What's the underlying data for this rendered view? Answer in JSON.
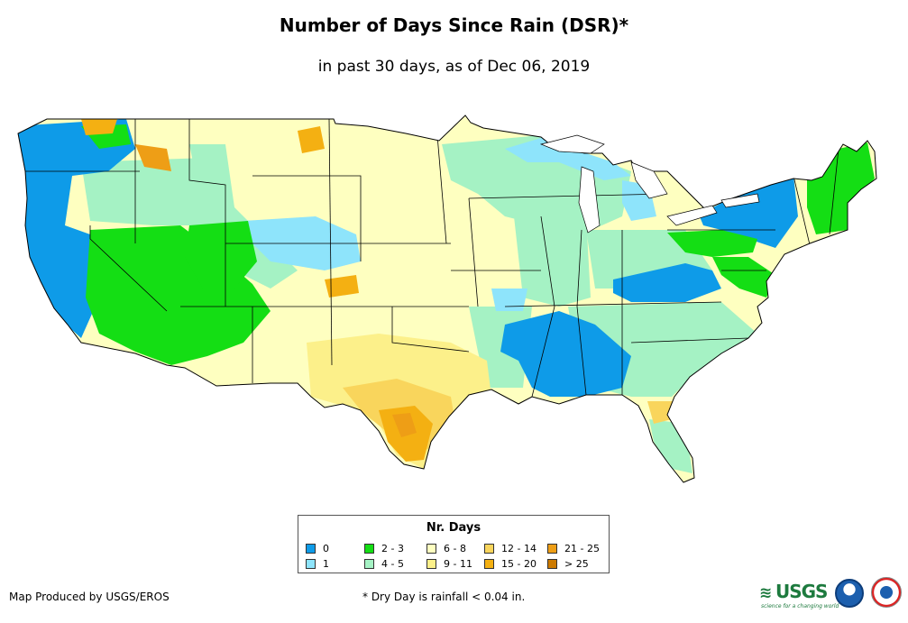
{
  "header": {
    "title": "Number of Days Since Rain (DSR)*",
    "subtitle": "in past 30 days, as of Dec 06, 2019"
  },
  "legend": {
    "title": "Nr. Days",
    "items": [
      {
        "label": "0",
        "color": "#0e9be8"
      },
      {
        "label": "1",
        "color": "#8ee4fb"
      },
      {
        "label": "2 - 3",
        "color": "#14de14"
      },
      {
        "label": "4 - 5",
        "color": "#a5f2c4"
      },
      {
        "label": "6 - 8",
        "color": "#feffc0"
      },
      {
        "label": "9 - 11",
        "color": "#fcf08a"
      },
      {
        "label": "12 - 14",
        "color": "#f9d55c"
      },
      {
        "label": "15 - 20",
        "color": "#f4b012"
      },
      {
        "label": "21 - 25",
        "color": "#ee9e16"
      },
      {
        "label": "> 25",
        "color": "#cc7a00"
      }
    ]
  },
  "footer": {
    "credit": "Map Produced by USGS/EROS",
    "footnote": "* Dry Day is rainfall < 0.04 in."
  },
  "logos": {
    "usgs_text": "USGS",
    "usgs_tagline": "science for a changing world",
    "usgs_icon": "usgs-wave-icon",
    "noaa_icon": "noaa-logo-icon",
    "nws_icon": "nws-logo-icon"
  }
}
